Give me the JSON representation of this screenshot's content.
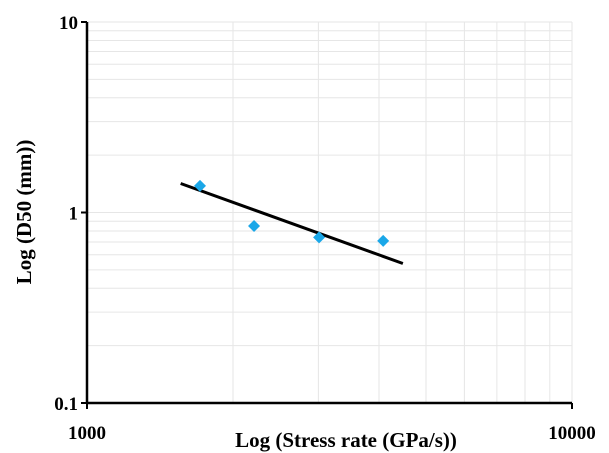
{
  "chart_data": {
    "type": "scatter",
    "title": "",
    "xlabel": "Log (Stress rate (GPa/s))",
    "ylabel": "Log (D50 (mm))",
    "x_scale": "log",
    "y_scale": "log",
    "xlim": [
      1000,
      10000
    ],
    "ylim": [
      0.1,
      10
    ],
    "x_ticks": [
      {
        "value": 1000,
        "label": "1000"
      },
      {
        "value": 10000,
        "label": "10000"
      }
    ],
    "y_ticks": [
      {
        "value": 0.1,
        "label": "0.1"
      },
      {
        "value": 1,
        "label": "1"
      },
      {
        "value": 10,
        "label": "10"
      }
    ],
    "grid": true,
    "legend": "none",
    "marker_color": "#1aa7e8",
    "line_color": "#000000",
    "series": [
      {
        "points": [
          {
            "x": 1710,
            "y": 1.38
          },
          {
            "x": 2210,
            "y": 0.85
          },
          {
            "x": 3010,
            "y": 0.74
          },
          {
            "x": 4080,
            "y": 0.71
          }
        ]
      }
    ],
    "trendline": {
      "x_start": 1560,
      "y_start": 1.42,
      "x_end": 4480,
      "y_end": 0.54
    }
  }
}
